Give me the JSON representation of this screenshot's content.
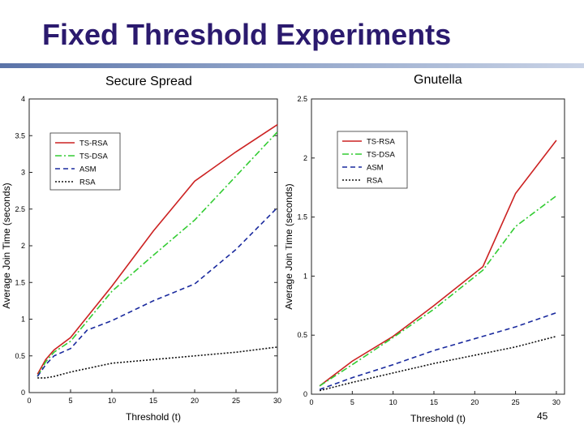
{
  "slide": {
    "title": "Fixed Threshold Experiments",
    "page_number": "45"
  },
  "colors": {
    "title": "#2b1a6e",
    "ts_rsa": "#cc2222",
    "ts_dsa": "#33cc33",
    "asm": "#1a2a9e",
    "rsa": "#111111"
  },
  "chart_data": [
    {
      "type": "line",
      "title": "Secure Spread",
      "xlabel": "Threshold (t)",
      "ylabel": "Average Join Time (seconds)",
      "xlim": [
        0,
        30
      ],
      "ylim": [
        0,
        4
      ],
      "xticks": [
        0,
        5,
        10,
        15,
        20,
        25,
        30
      ],
      "yticks": [
        0,
        0.5,
        1,
        1.5,
        2,
        2.5,
        3,
        3.5,
        4
      ],
      "grid": false,
      "legend": "top-left",
      "series": [
        {
          "name": "TS-RSA",
          "color": "#cc2222",
          "dash": "solid",
          "x": [
            1,
            2,
            3,
            5,
            10,
            15,
            20,
            25,
            30
          ],
          "y": [
            0.25,
            0.45,
            0.58,
            0.75,
            1.45,
            2.2,
            2.88,
            3.28,
            3.65
          ]
        },
        {
          "name": "TS-DSA",
          "color": "#33cc33",
          "dash": "dashdot",
          "x": [
            1,
            2,
            3,
            5,
            10,
            15,
            20,
            25,
            30
          ],
          "y": [
            0.22,
            0.42,
            0.55,
            0.7,
            1.38,
            1.87,
            2.35,
            2.95,
            3.55
          ]
        },
        {
          "name": "ASM",
          "color": "#1a2a9e",
          "dash": "dashed",
          "x": [
            1,
            2,
            3,
            5,
            7,
            10,
            15,
            20,
            25,
            30
          ],
          "y": [
            0.22,
            0.38,
            0.5,
            0.6,
            0.85,
            0.98,
            1.25,
            1.48,
            1.95,
            2.52
          ]
        },
        {
          "name": "RSA",
          "color": "#111111",
          "dash": "dotted",
          "x": [
            1,
            2,
            3,
            5,
            10,
            15,
            20,
            25,
            30
          ],
          "y": [
            0.2,
            0.2,
            0.22,
            0.28,
            0.4,
            0.45,
            0.5,
            0.55,
            0.62
          ]
        }
      ]
    },
    {
      "type": "line",
      "title": "Gnutella",
      "xlabel": "Threshold (t)",
      "ylabel": "Average Join Time (seconds)",
      "xlim": [
        0,
        31
      ],
      "ylim": [
        0,
        2.5
      ],
      "xticks": [
        0,
        5,
        10,
        15,
        20,
        25,
        30
      ],
      "yticks": [
        0,
        0.5,
        1,
        1.5,
        2,
        2.5
      ],
      "grid": false,
      "legend": "top-left",
      "series": [
        {
          "name": "TS-RSA",
          "color": "#cc2222",
          "dash": "solid",
          "x": [
            1,
            5,
            10,
            15,
            21,
            25,
            30
          ],
          "y": [
            0.07,
            0.28,
            0.49,
            0.75,
            1.08,
            1.7,
            2.15
          ]
        },
        {
          "name": "TS-DSA",
          "color": "#33cc33",
          "dash": "dashdot",
          "x": [
            1,
            5,
            10,
            15,
            21,
            25,
            30
          ],
          "y": [
            0.07,
            0.25,
            0.48,
            0.72,
            1.05,
            1.42,
            1.68
          ]
        },
        {
          "name": "ASM",
          "color": "#1a2a9e",
          "dash": "dashed",
          "x": [
            1,
            5,
            10,
            15,
            20,
            25,
            30
          ],
          "y": [
            0.04,
            0.14,
            0.25,
            0.37,
            0.47,
            0.57,
            0.69
          ]
        },
        {
          "name": "RSA",
          "color": "#111111",
          "dash": "dotted",
          "x": [
            1,
            5,
            10,
            15,
            20,
            25,
            30
          ],
          "y": [
            0.03,
            0.1,
            0.18,
            0.26,
            0.33,
            0.4,
            0.49
          ]
        }
      ]
    }
  ]
}
